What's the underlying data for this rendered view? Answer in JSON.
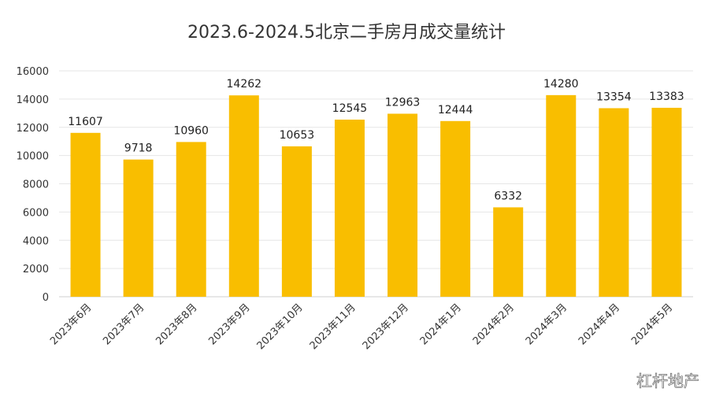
{
  "watermark": "杠杆地产",
  "chart_data": {
    "type": "bar",
    "title": "2023.6-2024.5北京二手房月成交量统计",
    "xlabel": "",
    "ylabel": "",
    "ylim": [
      0,
      16000
    ],
    "yticks": [
      0,
      2000,
      4000,
      6000,
      8000,
      10000,
      12000,
      14000,
      16000
    ],
    "grid": true,
    "bar_color": "#F9BE00",
    "categories": [
      "2023年6月",
      "2023年7月",
      "2023年8月",
      "2023年9月",
      "2023年10月",
      "2023年11月",
      "2023年12月",
      "2024年1月",
      "2024年2月",
      "2024年3月",
      "2024年4月",
      "2024年5月"
    ],
    "values": [
      11607,
      9718,
      10960,
      14262,
      10653,
      12545,
      12963,
      12444,
      6332,
      14280,
      13354,
      13383
    ],
    "data_labels": [
      "11607",
      "9718",
      "10960",
      "14262",
      "10653",
      "12545",
      "12963",
      "12444",
      "6332",
      "14280",
      "13354",
      "13383"
    ]
  }
}
